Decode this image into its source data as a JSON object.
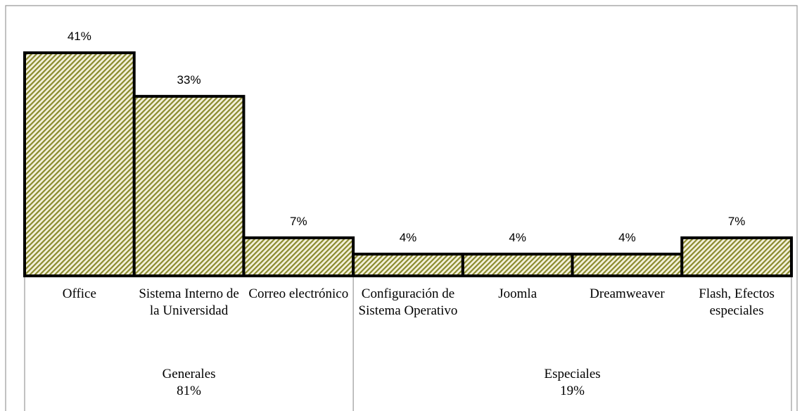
{
  "chart_data": {
    "type": "bar",
    "categories": [
      "Office",
      "Sistema Interno de la Universidad",
      "Correo electrónico",
      "Configuración de Sistema Operativo",
      "Joomla",
      "Dreamweaver",
      "Flash, Efectos especiales"
    ],
    "values": [
      41,
      33,
      7,
      4,
      4,
      4,
      7
    ],
    "value_labels": [
      "41%",
      "33%",
      "7%",
      "4%",
      "4%",
      "4%",
      "7%"
    ],
    "color": "#8a8a2e",
    "groups": [
      {
        "name": "Generales",
        "value": 81,
        "value_label": "81%",
        "members": [
          "Office",
          "Sistema Interno de la Universidad",
          "Correo electrónico"
        ]
      },
      {
        "name": "Especiales",
        "value": 19,
        "value_label": "19%",
        "members": [
          "Configuración de Sistema Operativo",
          "Joomla",
          "Dreamweaver",
          "Flash, Efectos especiales"
        ]
      }
    ]
  }
}
